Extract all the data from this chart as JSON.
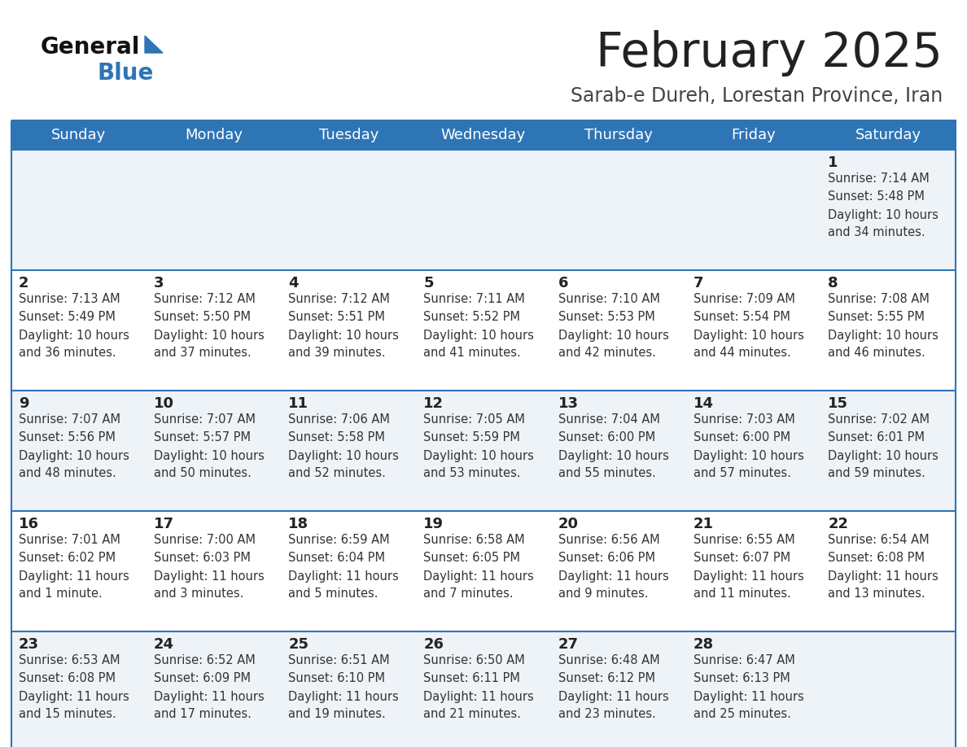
{
  "title": "February 2025",
  "subtitle": "Sarab-e Dureh, Lorestan Province, Iran",
  "header_bg": "#2E75B6",
  "header_text": "#FFFFFF",
  "alt_row_bg": "#EEF3F8",
  "white_row_bg": "#FFFFFF",
  "border_color": "#2E75B6",
  "day_headers": [
    "Sunday",
    "Monday",
    "Tuesday",
    "Wednesday",
    "Thursday",
    "Friday",
    "Saturday"
  ],
  "title_color": "#222222",
  "subtitle_color": "#444444",
  "cell_text_color": "#333333",
  "day_num_color": "#222222",
  "calendar": [
    [
      null,
      null,
      null,
      null,
      null,
      null,
      {
        "day": 1,
        "sunrise": "7:14 AM",
        "sunset": "5:48 PM",
        "daylight": "10 hours",
        "daylight2": "and 34 minutes."
      }
    ],
    [
      {
        "day": 2,
        "sunrise": "7:13 AM",
        "sunset": "5:49 PM",
        "daylight": "10 hours",
        "daylight2": "and 36 minutes."
      },
      {
        "day": 3,
        "sunrise": "7:12 AM",
        "sunset": "5:50 PM",
        "daylight": "10 hours",
        "daylight2": "and 37 minutes."
      },
      {
        "day": 4,
        "sunrise": "7:12 AM",
        "sunset": "5:51 PM",
        "daylight": "10 hours",
        "daylight2": "and 39 minutes."
      },
      {
        "day": 5,
        "sunrise": "7:11 AM",
        "sunset": "5:52 PM",
        "daylight": "10 hours",
        "daylight2": "and 41 minutes."
      },
      {
        "day": 6,
        "sunrise": "7:10 AM",
        "sunset": "5:53 PM",
        "daylight": "10 hours",
        "daylight2": "and 42 minutes."
      },
      {
        "day": 7,
        "sunrise": "7:09 AM",
        "sunset": "5:54 PM",
        "daylight": "10 hours",
        "daylight2": "and 44 minutes."
      },
      {
        "day": 8,
        "sunrise": "7:08 AM",
        "sunset": "5:55 PM",
        "daylight": "10 hours",
        "daylight2": "and 46 minutes."
      }
    ],
    [
      {
        "day": 9,
        "sunrise": "7:07 AM",
        "sunset": "5:56 PM",
        "daylight": "10 hours",
        "daylight2": "and 48 minutes."
      },
      {
        "day": 10,
        "sunrise": "7:07 AM",
        "sunset": "5:57 PM",
        "daylight": "10 hours",
        "daylight2": "and 50 minutes."
      },
      {
        "day": 11,
        "sunrise": "7:06 AM",
        "sunset": "5:58 PM",
        "daylight": "10 hours",
        "daylight2": "and 52 minutes."
      },
      {
        "day": 12,
        "sunrise": "7:05 AM",
        "sunset": "5:59 PM",
        "daylight": "10 hours",
        "daylight2": "and 53 minutes."
      },
      {
        "day": 13,
        "sunrise": "7:04 AM",
        "sunset": "6:00 PM",
        "daylight": "10 hours",
        "daylight2": "and 55 minutes."
      },
      {
        "day": 14,
        "sunrise": "7:03 AM",
        "sunset": "6:00 PM",
        "daylight": "10 hours",
        "daylight2": "and 57 minutes."
      },
      {
        "day": 15,
        "sunrise": "7:02 AM",
        "sunset": "6:01 PM",
        "daylight": "10 hours",
        "daylight2": "and 59 minutes."
      }
    ],
    [
      {
        "day": 16,
        "sunrise": "7:01 AM",
        "sunset": "6:02 PM",
        "daylight": "11 hours",
        "daylight2": "and 1 minute."
      },
      {
        "day": 17,
        "sunrise": "7:00 AM",
        "sunset": "6:03 PM",
        "daylight": "11 hours",
        "daylight2": "and 3 minutes."
      },
      {
        "day": 18,
        "sunrise": "6:59 AM",
        "sunset": "6:04 PM",
        "daylight": "11 hours",
        "daylight2": "and 5 minutes."
      },
      {
        "day": 19,
        "sunrise": "6:58 AM",
        "sunset": "6:05 PM",
        "daylight": "11 hours",
        "daylight2": "and 7 minutes."
      },
      {
        "day": 20,
        "sunrise": "6:56 AM",
        "sunset": "6:06 PM",
        "daylight": "11 hours",
        "daylight2": "and 9 minutes."
      },
      {
        "day": 21,
        "sunrise": "6:55 AM",
        "sunset": "6:07 PM",
        "daylight": "11 hours",
        "daylight2": "and 11 minutes."
      },
      {
        "day": 22,
        "sunrise": "6:54 AM",
        "sunset": "6:08 PM",
        "daylight": "11 hours",
        "daylight2": "and 13 minutes."
      }
    ],
    [
      {
        "day": 23,
        "sunrise": "6:53 AM",
        "sunset": "6:08 PM",
        "daylight": "11 hours",
        "daylight2": "and 15 minutes."
      },
      {
        "day": 24,
        "sunrise": "6:52 AM",
        "sunset": "6:09 PM",
        "daylight": "11 hours",
        "daylight2": "and 17 minutes."
      },
      {
        "day": 25,
        "sunrise": "6:51 AM",
        "sunset": "6:10 PM",
        "daylight": "11 hours",
        "daylight2": "and 19 minutes."
      },
      {
        "day": 26,
        "sunrise": "6:50 AM",
        "sunset": "6:11 PM",
        "daylight": "11 hours",
        "daylight2": "and 21 minutes."
      },
      {
        "day": 27,
        "sunrise": "6:48 AM",
        "sunset": "6:12 PM",
        "daylight": "11 hours",
        "daylight2": "and 23 minutes."
      },
      {
        "day": 28,
        "sunrise": "6:47 AM",
        "sunset": "6:13 PM",
        "daylight": "11 hours",
        "daylight2": "and 25 minutes."
      },
      null
    ]
  ]
}
